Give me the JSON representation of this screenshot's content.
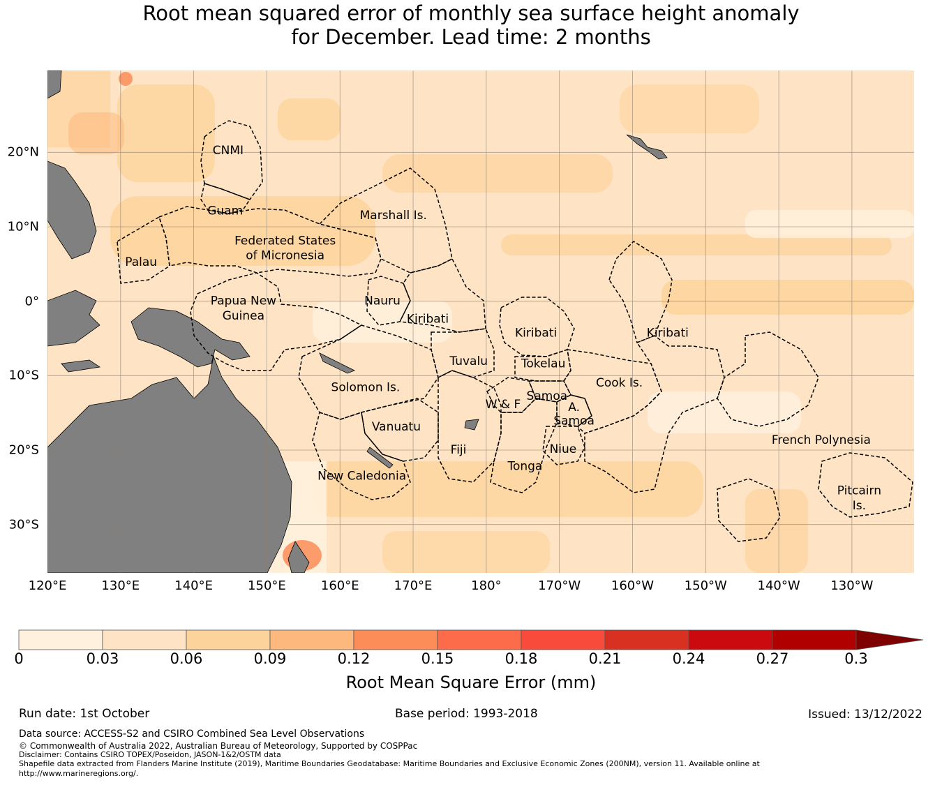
{
  "title": {
    "line1": "Root mean squared error of monthly sea surface height anomaly",
    "line2": "for December. Lead time: 2 months"
  },
  "map": {
    "lon_labels": [
      "120°E",
      "130°E",
      "140°E",
      "150°E",
      "160°E",
      "170°E",
      "180°",
      "170°W",
      "160°W",
      "150°W",
      "140°W",
      "130°W"
    ],
    "lat_labels": [
      "20°N",
      "10°N",
      "0°",
      "10°S",
      "20°S",
      "30°S"
    ],
    "lon_values": [
      120,
      130,
      140,
      150,
      160,
      170,
      180,
      190,
      200,
      210,
      220,
      230
    ],
    "lat_values": [
      20,
      10,
      0,
      -10,
      -20,
      -30
    ],
    "extent": {
      "lon_min": 120,
      "lon_max": 238.5,
      "lat_min": -36.5,
      "lat_max": 31
    },
    "regions": [
      {
        "label": "CNMI",
        "lon": 144.7,
        "lat": 20.2
      },
      {
        "label": "Guam",
        "lon": 144.3,
        "lat": 12.1
      },
      {
        "label": "Marshall Is.",
        "lon": 167.3,
        "lat": 11.5
      },
      {
        "label": "Federated States",
        "lon": 152.5,
        "lat": 8.1
      },
      {
        "label": "of Micronesia",
        "lon": 152.5,
        "lat": 6.1
      },
      {
        "label": "Palau",
        "lon": 132.8,
        "lat": 5.2
      },
      {
        "label": "Papua New",
        "lon": 146.8,
        "lat": 0.0
      },
      {
        "label": "Guinea",
        "lon": 146.8,
        "lat": -2.0
      },
      {
        "label": "Nauru",
        "lon": 165.8,
        "lat": 0.0
      },
      {
        "label": "Kiribati",
        "lon": 172.0,
        "lat": -2.4
      },
      {
        "label": "Kiribati",
        "lon": 186.8,
        "lat": -4.3
      },
      {
        "label": "Kiribati",
        "lon": 204.8,
        "lat": -4.3
      },
      {
        "label": "Tuvalu",
        "lon": 177.6,
        "lat": -8.1
      },
      {
        "label": "Tokelau",
        "lon": 187.8,
        "lat": -8.4
      },
      {
        "label": "Solomon Is.",
        "lon": 163.5,
        "lat": -11.6
      },
      {
        "label": "Cook Is.",
        "lon": 198.2,
        "lat": -11.0
      },
      {
        "label": "Samoa",
        "lon": 188.3,
        "lat": -12.8
      },
      {
        "label": "W & F",
        "lon": 182.3,
        "lat": -13.9
      },
      {
        "label": "A.",
        "lon": 192.0,
        "lat": -14.3
      },
      {
        "label": "Samoa",
        "lon": 192.0,
        "lat": -16.1
      },
      {
        "label": "Vanuatu",
        "lon": 167.7,
        "lat": -16.9
      },
      {
        "label": "French Polynesia",
        "lon": 225.8,
        "lat": -18.7
      },
      {
        "label": "Fiji",
        "lon": 176.2,
        "lat": -20.0
      },
      {
        "label": "Niue",
        "lon": 190.5,
        "lat": -19.9
      },
      {
        "label": "Tonga",
        "lon": 185.3,
        "lat": -22.2
      },
      {
        "label": "New Caledonia",
        "lon": 163.0,
        "lat": -23.5
      },
      {
        "label": "Pitcairn",
        "lon": 231.0,
        "lat": -25.5
      },
      {
        "label": "Is.",
        "lon": 231.0,
        "lat": -27.5
      }
    ]
  },
  "colorbar": {
    "levels": [
      "0",
      "0.03",
      "0.06",
      "0.09",
      "0.12",
      "0.15",
      "0.18",
      "0.21",
      "0.24",
      "0.27",
      "0.3"
    ],
    "colors": [
      "#fff1de",
      "#fee4c4",
      "#fdd39c",
      "#fdb97d",
      "#fc8d59",
      "#fc6b4a",
      "#f84b3c",
      "#d93121",
      "#cb0a10",
      "#b00000",
      "#7f0000"
    ],
    "label": "Root Mean Square Error (mm)"
  },
  "footer": {
    "run_date": "Run date: 1st October",
    "base_period": "Base period: 1993-2018",
    "issued": "Issued: 13/12/2022",
    "data_source": "Data source: ACCESS-S2 and CSIRO Combined Sea Level Observations",
    "copyright": "© Commonwealth of Australia 2022, Australian Bureau of Meteorology, Supported by COSPPac",
    "disclaimer": "Disclaimer: Contains CSIRO TOPEX/Poseidon, JASON-1&2/OSTM data",
    "shapefile_line1": "Shapefile data extracted from Flanders Marine Institute (2019), Maritime Boundaries Geodatabase: Maritime Boundaries and Exclusive Economic Zones (200NM), version 11. Available online at",
    "shapefile_line2": "http://www.marineregions.org/."
  }
}
